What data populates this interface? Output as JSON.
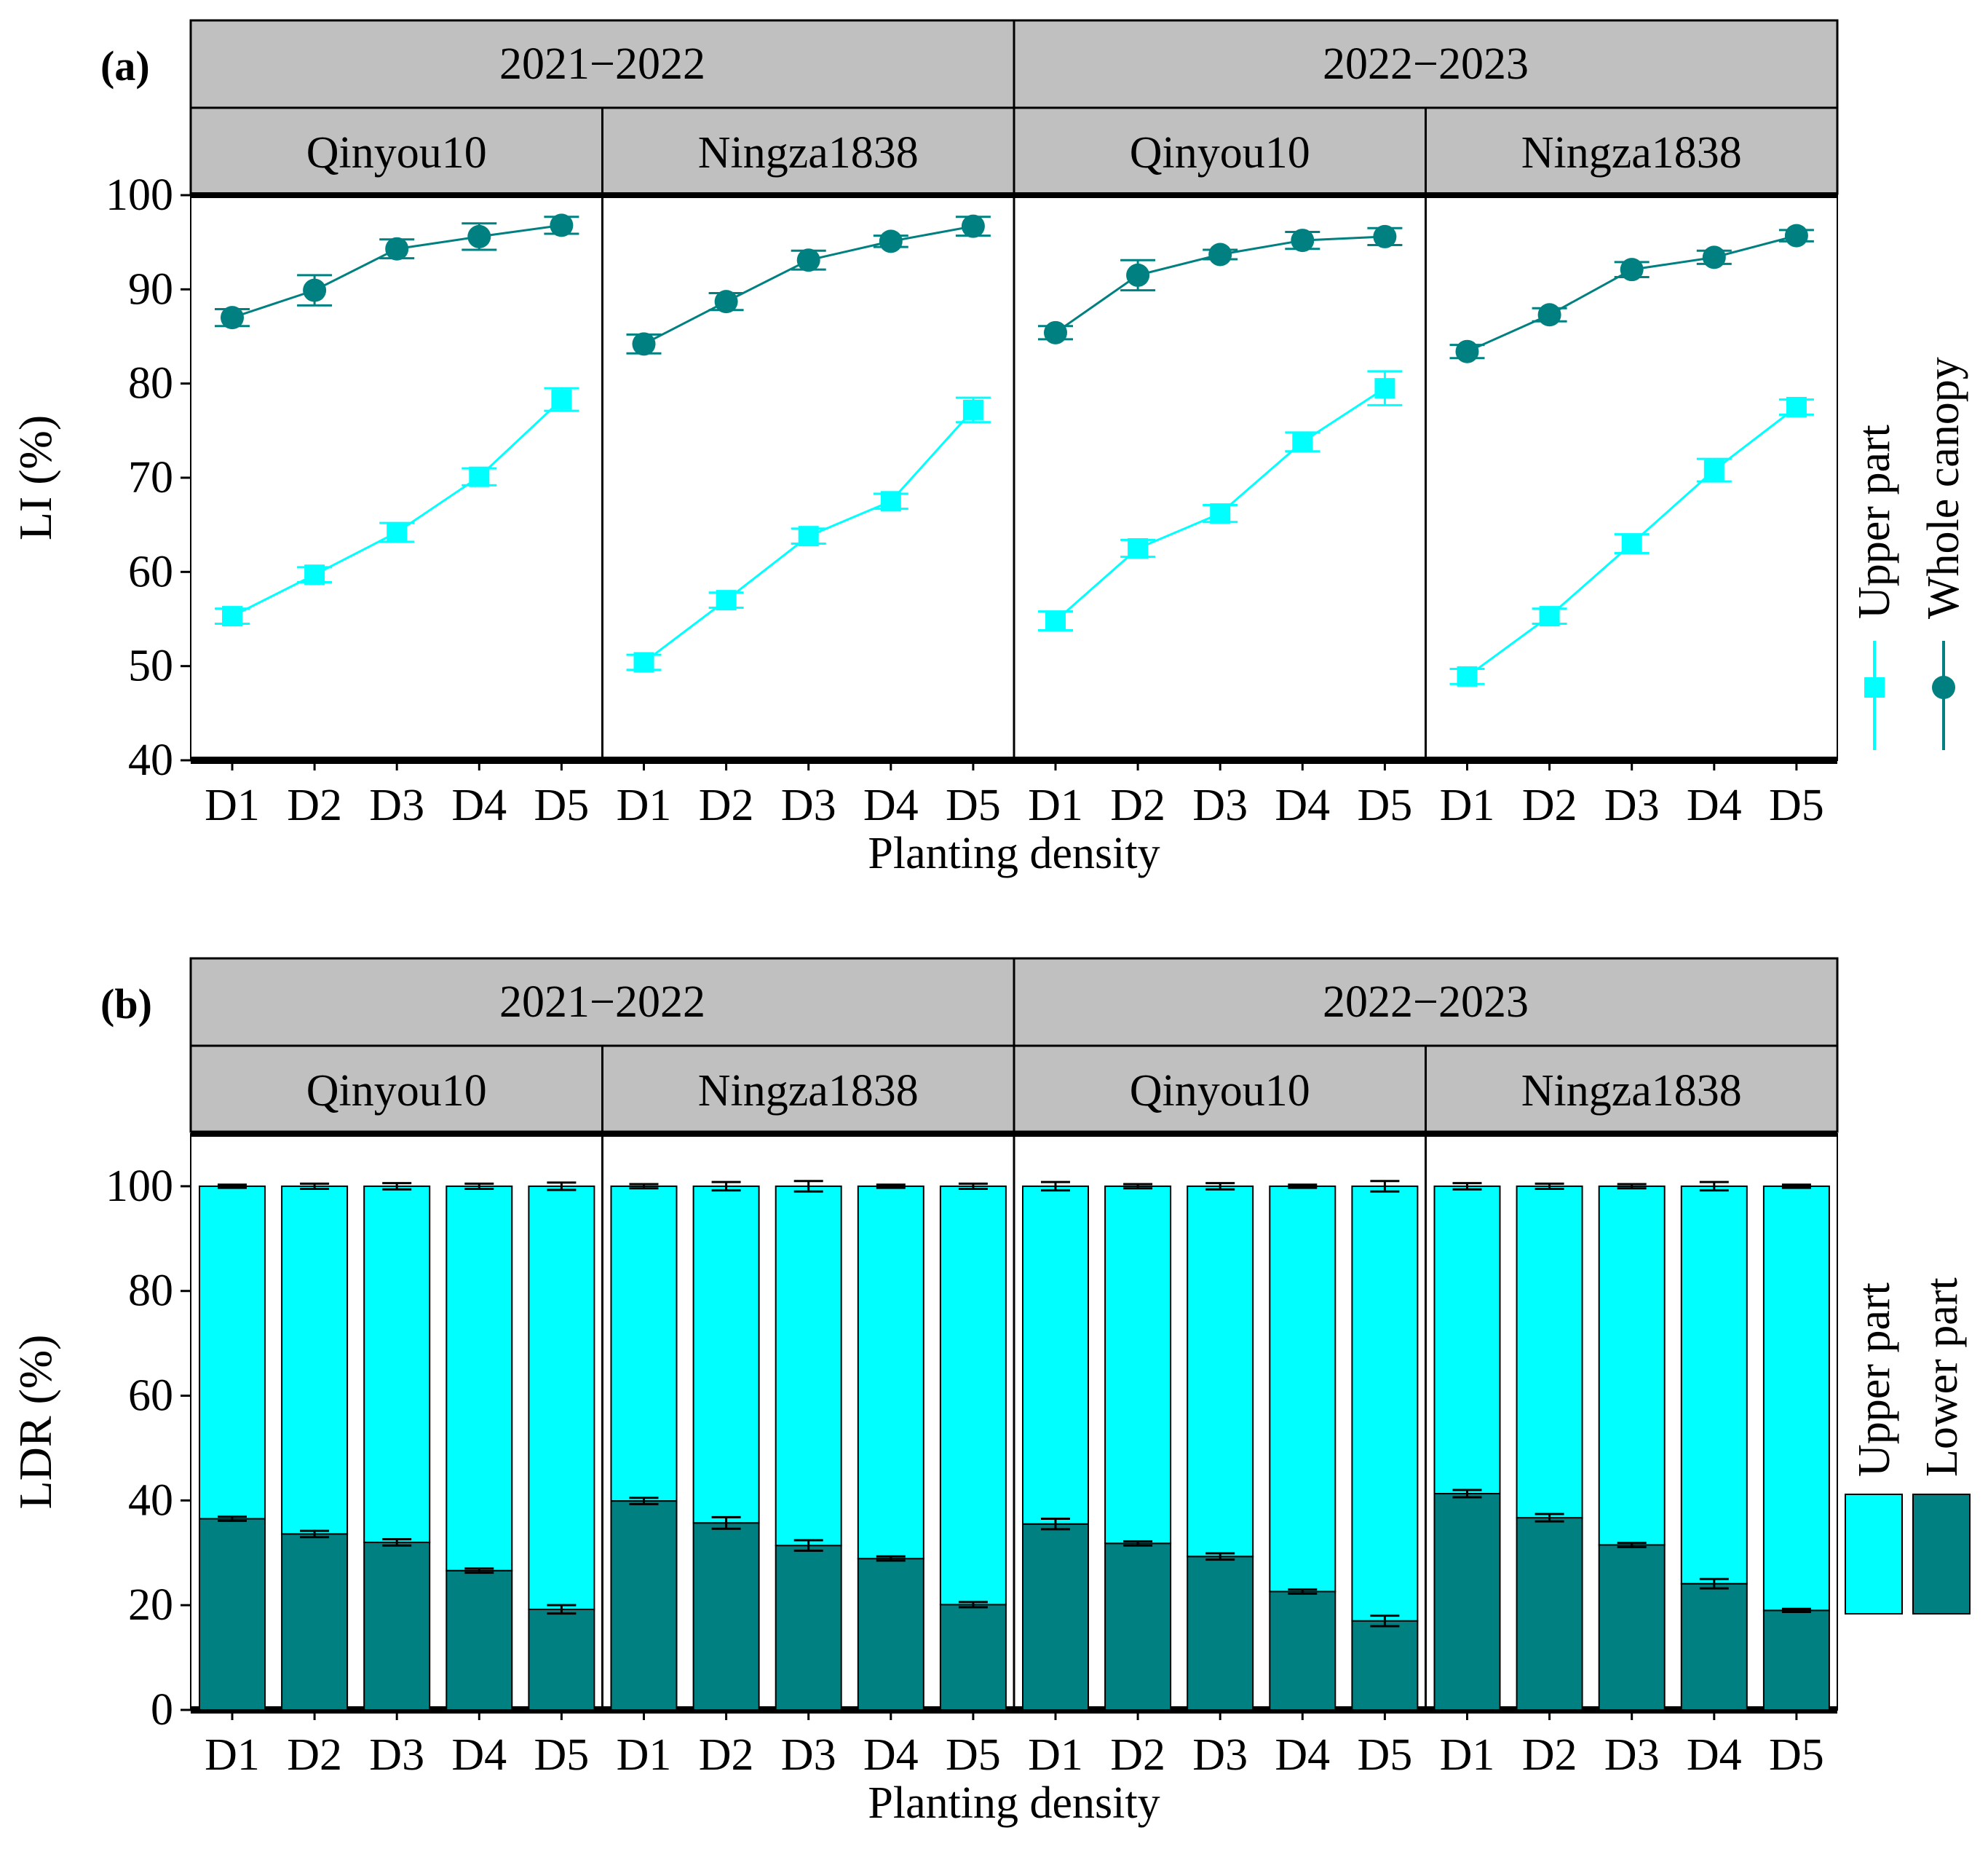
{
  "figure": {
    "x_label": "Planting density",
    "panel_a_label": "(a)",
    "panel_b_label": "(b)"
  },
  "colors": {
    "upper": "#00FFFF",
    "whole": "#008080",
    "lower": "#008080",
    "strip": "#C0C0C0"
  },
  "chart_data": [
    {
      "id": "a",
      "type": "line",
      "panel_label": "(a)",
      "ylabel": "LI (%)",
      "xlabel": "Planting density",
      "ylim": [
        40,
        100
      ],
      "yticks": [
        40,
        50,
        60,
        70,
        80,
        90,
        100
      ],
      "categories": [
        "D1",
        "D2",
        "D3",
        "D4",
        "D5"
      ],
      "years": [
        "2021−2022",
        "2022−2023"
      ],
      "cultivars": [
        "Qinyou10",
        "Ningza1838"
      ],
      "legend": [
        "Upper part",
        "Whole canopy"
      ],
      "facets": [
        {
          "year": "2021−2022",
          "cultivar": "Qinyou10",
          "series": [
            {
              "name": "Upper part",
              "values": [
                55.3,
                59.7,
                64.2,
                70.1,
                78.3
              ],
              "errors": [
                0.8,
                0.8,
                1.0,
                0.9,
                1.2
              ]
            },
            {
              "name": "Whole canopy",
              "values": [
                87.0,
                89.9,
                94.3,
                95.6,
                96.8
              ],
              "errors": [
                0.9,
                1.6,
                1.0,
                1.4,
                0.9
              ]
            }
          ]
        },
        {
          "year": "2021−2022",
          "cultivar": "Ningza1838",
          "series": [
            {
              "name": "Upper part",
              "values": [
                50.4,
                57.0,
                63.8,
                67.5,
                77.2
              ],
              "errors": [
                0.8,
                0.8,
                0.8,
                0.8,
                1.3
              ]
            },
            {
              "name": "Whole canopy",
              "values": [
                84.2,
                88.7,
                93.1,
                95.1,
                96.7
              ],
              "errors": [
                1.0,
                0.9,
                1.0,
                0.6,
                1.0
              ]
            }
          ]
        },
        {
          "year": "2022−2023",
          "cultivar": "Qinyou10",
          "series": [
            {
              "name": "Upper part",
              "values": [
                54.8,
                62.5,
                66.2,
                73.8,
                79.5
              ],
              "errors": [
                1.0,
                0.9,
                0.9,
                1.0,
                1.8
              ]
            },
            {
              "name": "Whole canopy",
              "values": [
                85.4,
                91.5,
                93.7,
                95.2,
                95.6
              ],
              "errors": [
                0.7,
                1.6,
                0.5,
                0.9,
                0.9
              ]
            }
          ]
        },
        {
          "year": "2022−2023",
          "cultivar": "Ningza1838",
          "series": [
            {
              "name": "Upper part",
              "values": [
                48.9,
                55.3,
                63.0,
                70.8,
                77.5
              ],
              "errors": [
                0.8,
                0.8,
                1.0,
                1.2,
                0.8
              ]
            },
            {
              "name": "Whole canopy",
              "values": [
                83.4,
                87.3,
                92.1,
                93.4,
                95.7
              ],
              "errors": [
                0.7,
                0.7,
                0.8,
                0.7,
                0.6
              ]
            }
          ]
        }
      ]
    },
    {
      "id": "b",
      "type": "bar",
      "stacked": true,
      "panel_label": "(b)",
      "ylabel": "LDR (%)",
      "xlabel": "Planting density",
      "ylim": [
        0,
        110
      ],
      "yticks": [
        0,
        20,
        40,
        60,
        80,
        100
      ],
      "categories": [
        "D1",
        "D2",
        "D3",
        "D4",
        "D5"
      ],
      "years": [
        "2021−2022",
        "2022−2023"
      ],
      "cultivars": [
        "Qinyou10",
        "Ningza1838"
      ],
      "legend": [
        "Upper part",
        "Lower part"
      ],
      "facets": [
        {
          "year": "2021−2022",
          "cultivar": "Qinyou10",
          "series": [
            {
              "name": "Lower part",
              "values": [
                36.5,
                33.6,
                32.0,
                26.6,
                19.2
              ],
              "errors": [
                0.4,
                0.6,
                0.6,
                0.4,
                0.8
              ]
            },
            {
              "name": "Upper part",
              "values": [
                63.5,
                66.4,
                68.0,
                73.4,
                80.8
              ],
              "errors": [
                0.3,
                0.5,
                0.6,
                0.5,
                0.7
              ]
            }
          ]
        },
        {
          "year": "2021−2022",
          "cultivar": "Ningza1838",
          "series": [
            {
              "name": "Lower part",
              "values": [
                39.9,
                35.7,
                31.4,
                28.9,
                20.1
              ],
              "errors": [
                0.6,
                1.1,
                1.0,
                0.4,
                0.5
              ]
            },
            {
              "name": "Upper part",
              "values": [
                60.1,
                64.3,
                68.6,
                71.1,
                79.9
              ],
              "errors": [
                0.4,
                0.8,
                1.0,
                0.3,
                0.5
              ]
            }
          ]
        },
        {
          "year": "2022−2023",
          "cultivar": "Qinyou10",
          "series": [
            {
              "name": "Lower part",
              "values": [
                35.5,
                31.8,
                29.3,
                22.6,
                17.0
              ],
              "errors": [
                1.0,
                0.4,
                0.6,
                0.4,
                1.0
              ]
            },
            {
              "name": "Upper part",
              "values": [
                64.5,
                68.2,
                70.7,
                77.4,
                83.0
              ],
              "errors": [
                0.8,
                0.4,
                0.6,
                0.3,
                1.0
              ]
            }
          ]
        },
        {
          "year": "2022−2023",
          "cultivar": "Ningza1838",
          "series": [
            {
              "name": "Lower part",
              "values": [
                41.3,
                36.7,
                31.5,
                24.1,
                19.0
              ],
              "errors": [
                0.7,
                0.7,
                0.4,
                0.9,
                0.3
              ]
            },
            {
              "name": "Upper part",
              "values": [
                58.7,
                63.3,
                68.5,
                75.9,
                81.0
              ],
              "errors": [
                0.6,
                0.5,
                0.4,
                0.8,
                0.3
              ]
            }
          ]
        }
      ]
    }
  ]
}
